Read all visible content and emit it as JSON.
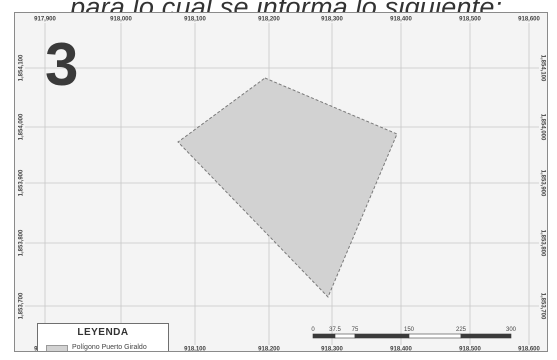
{
  "heading": ", para lo cual se informa lo siguiente:",
  "figure_number": "3",
  "map": {
    "x_ticks": [
      "917,900",
      "918,000",
      "918,100",
      "918,200",
      "918,300",
      "918,400",
      "918,500",
      "918,600"
    ],
    "y_ticks": [
      "1,854,100",
      "1,854,000",
      "1,853,900",
      "1,853,800",
      "1,853,700"
    ],
    "polygon_fill": "#d2d2d2",
    "polygon_stroke": "#7a7a7a",
    "grid_color": "#c7c7c7"
  },
  "legend": {
    "title": "LEYENDA",
    "items": [
      {
        "label": "Polígono Puerto Giraldo",
        "color": "#d2d2d2"
      }
    ]
  },
  "scale_bar": {
    "labels": [
      "0",
      "37.5",
      "75",
      "150",
      "225",
      "300"
    ]
  }
}
